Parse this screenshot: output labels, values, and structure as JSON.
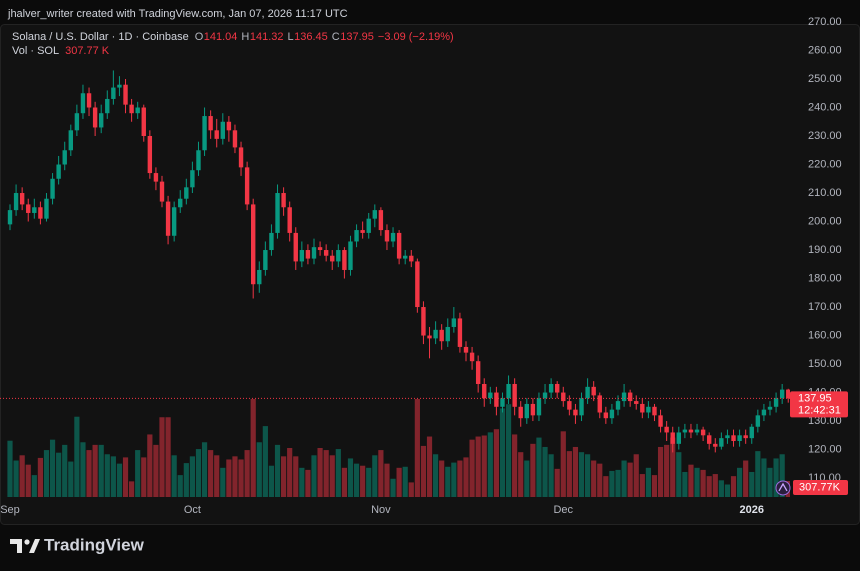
{
  "header": "jhalver_writer created with TradingView.com, Jan 07, 2026 11:17 UTC",
  "footer": "TradingView",
  "chart_data": {
    "type": "candlestick",
    "title": "Solana / U.S. Dollar · 1D · Coinbase",
    "ohlc_labels": [
      "O",
      "H",
      "L",
      "C"
    ],
    "change": {
      "value": -3.09,
      "label": "−3.09"
    },
    "change_pct": {
      "value": -2.19,
      "label": "(−2.19%)"
    },
    "up_color": "#089981",
    "down_color": "#f23645",
    "categories": [
      "Sep",
      null,
      null,
      null,
      null,
      null,
      null,
      null,
      null,
      null,
      null,
      null,
      null,
      null,
      null,
      null,
      null,
      null,
      null,
      null,
      null,
      null,
      null,
      null,
      null,
      null,
      null,
      null,
      null,
      null,
      "Oct",
      null,
      null,
      null,
      null,
      null,
      null,
      null,
      null,
      null,
      null,
      null,
      null,
      null,
      null,
      null,
      null,
      null,
      null,
      null,
      null,
      null,
      null,
      null,
      null,
      null,
      null,
      null,
      null,
      null,
      null,
      "Nov",
      null,
      null,
      null,
      null,
      null,
      null,
      null,
      null,
      null,
      null,
      null,
      null,
      null,
      null,
      null,
      null,
      null,
      null,
      null,
      null,
      null,
      null,
      null,
      null,
      null,
      null,
      null,
      null,
      null,
      "Dec",
      null,
      null,
      null,
      null,
      null,
      null,
      null,
      null,
      null,
      null,
      null,
      null,
      null,
      null,
      null,
      null,
      null,
      null,
      null,
      null,
      null,
      null,
      null,
      null,
      null,
      null,
      null,
      null,
      null,
      null,
      "2026",
      null,
      null,
      null,
      null,
      null,
      null
    ],
    "open": [
      199,
      204,
      210,
      206,
      203,
      205,
      201,
      208,
      215,
      220,
      225,
      232,
      238,
      245,
      240,
      233,
      238,
      243,
      247,
      248,
      241,
      238,
      240,
      230,
      217,
      214,
      207,
      195,
      205,
      208,
      212,
      218,
      225,
      237,
      232,
      229,
      235,
      232,
      226,
      219,
      206,
      178,
      183,
      190,
      196,
      210,
      205,
      196,
      186,
      190,
      187,
      191,
      190,
      188,
      186,
      190,
      183,
      193,
      197,
      196,
      201,
      204,
      197,
      193,
      196,
      187,
      188,
      186,
      170,
      160,
      159,
      162,
      158,
      163,
      166,
      156,
      154,
      151,
      143,
      138,
      140,
      135,
      138,
      143,
      135,
      131,
      136,
      132,
      138,
      140,
      143,
      140,
      137,
      134,
      132,
      138,
      142,
      139,
      133,
      131,
      134,
      137,
      140,
      137,
      136,
      133,
      135,
      132,
      128,
      126,
      122,
      126,
      127,
      126,
      127,
      125,
      122,
      121,
      124,
      125,
      123,
      125,
      124,
      128,
      132,
      134,
      135,
      138,
      141.04
    ],
    "high": [
      206,
      213,
      212,
      208,
      208,
      207,
      210,
      217,
      223,
      228,
      234,
      241,
      248,
      247,
      242,
      241,
      246,
      253,
      251,
      250,
      243,
      242,
      241,
      232,
      219,
      216,
      209,
      207,
      211,
      215,
      221,
      228,
      240,
      239,
      236,
      238,
      237,
      234,
      228,
      221,
      208,
      186,
      193,
      199,
      213,
      212,
      207,
      198,
      193,
      192,
      194,
      193,
      192,
      190,
      192,
      191,
      195,
      199,
      200,
      203,
      206,
      205,
      199,
      198,
      197,
      190,
      190,
      187,
      172,
      163,
      165,
      164,
      166,
      170,
      168,
      158,
      156,
      153,
      145,
      142,
      142,
      140,
      146,
      145,
      137,
      138,
      138,
      140,
      143,
      145,
      144,
      142,
      139,
      136,
      140,
      145,
      144,
      140,
      135,
      136,
      139,
      143,
      141,
      139,
      138,
      137,
      136,
      134,
      130,
      128,
      128,
      129,
      129,
      129,
      128,
      126,
      124,
      126,
      127,
      127,
      127,
      127,
      129,
      134,
      136,
      137,
      140,
      143,
      141.32
    ],
    "low": [
      197,
      202,
      204,
      200,
      201,
      199,
      200,
      206,
      213,
      218,
      223,
      230,
      236,
      237,
      230,
      231,
      236,
      241,
      244,
      238,
      235,
      236,
      228,
      215,
      211,
      205,
      192,
      193,
      203,
      206,
      210,
      216,
      223,
      229,
      226,
      227,
      228,
      224,
      216,
      204,
      173,
      175,
      181,
      188,
      194,
      202,
      193,
      183,
      184,
      185,
      185,
      188,
      186,
      183,
      184,
      180,
      181,
      191,
      194,
      194,
      198,
      195,
      190,
      191,
      185,
      185,
      184,
      168,
      157,
      152,
      157,
      155,
      156,
      161,
      154,
      151,
      148,
      140,
      135,
      136,
      132,
      133,
      136,
      132,
      128,
      129,
      130,
      130,
      136,
      138,
      138,
      135,
      132,
      129,
      130,
      136,
      137,
      131,
      129,
      129,
      132,
      135,
      135,
      134,
      131,
      131,
      130,
      126,
      123,
      119,
      120,
      124,
      124,
      125,
      123,
      120,
      119,
      120,
      122,
      121,
      121,
      122,
      122,
      126,
      130,
      132,
      133,
      136,
      136.45
    ],
    "close": [
      204,
      210,
      206,
      203,
      205,
      201,
      208,
      215,
      220,
      225,
      232,
      238,
      245,
      240,
      233,
      238,
      243,
      247,
      248,
      241,
      238,
      240,
      230,
      217,
      214,
      207,
      195,
      205,
      208,
      212,
      218,
      225,
      237,
      232,
      229,
      235,
      232,
      226,
      219,
      206,
      178,
      183,
      190,
      196,
      210,
      205,
      196,
      186,
      190,
      187,
      191,
      190,
      188,
      186,
      190,
      183,
      193,
      197,
      196,
      201,
      204,
      197,
      193,
      196,
      187,
      188,
      186,
      170,
      160,
      159,
      162,
      158,
      163,
      166,
      156,
      154,
      151,
      143,
      138,
      140,
      135,
      138,
      143,
      135,
      131,
      136,
      132,
      138,
      140,
      143,
      140,
      137,
      134,
      132,
      138,
      142,
      139,
      133,
      131,
      134,
      137,
      140,
      137,
      136,
      133,
      135,
      132,
      128,
      126,
      122,
      126,
      127,
      126,
      127,
      125,
      122,
      121,
      124,
      125,
      123,
      125,
      124,
      128,
      132,
      134,
      135,
      138,
      141.04,
      137.95
    ],
    "volume_title": "Vol · SOL",
    "volume": [
      1080,
      700,
      800,
      620,
      420,
      750,
      900,
      1100,
      850,
      1000,
      680,
      1540,
      1050,
      900,
      1000,
      1000,
      820,
      780,
      640,
      760,
      300,
      900,
      760,
      1200,
      1000,
      1530,
      1530,
      800,
      420,
      650,
      780,
      920,
      1050,
      900,
      800,
      560,
      720,
      780,
      720,
      900,
      1880,
      1050,
      1360,
      600,
      1000,
      780,
      940,
      780,
      560,
      520,
      800,
      940,
      900,
      800,
      920,
      560,
      740,
      640,
      600,
      560,
      800,
      900,
      640,
      350,
      560,
      580,
      280,
      1880,
      980,
      1160,
      820,
      700,
      580,
      660,
      700,
      760,
      1100,
      1160,
      1180,
      1240,
      1300,
      1700,
      1780,
      1200,
      860,
      700,
      1020,
      1140,
      960,
      820,
      540,
      1260,
      880,
      960,
      860,
      820,
      700,
      640,
      400,
      500,
      520,
      700,
      660,
      820,
      440,
      560,
      420,
      960,
      1000,
      1140,
      860,
      480,
      620,
      560,
      520,
      400,
      440,
      320,
      240,
      400,
      560,
      700,
      480,
      880,
      740,
      560,
      740,
      820,
      307.77
    ],
    "volume_value_label": "307.77 K",
    "volume_badge": "307.77K",
    "countdown": "12:42:31",
    "ylim": [
      102.3,
      270.7
    ],
    "yticks": [
      {
        "value": 110,
        "label": "110.00"
      },
      {
        "value": 120,
        "label": "120.00"
      },
      {
        "value": 130,
        "label": "130.00"
      },
      {
        "value": 140,
        "label": "140.00"
      },
      {
        "value": 150,
        "label": "150.00"
      },
      {
        "value": 160,
        "label": "160.00"
      },
      {
        "value": 170,
        "label": "170.00"
      },
      {
        "value": 180,
        "label": "180.00"
      },
      {
        "value": 190,
        "label": "190.00"
      },
      {
        "value": 200,
        "label": "200.00"
      },
      {
        "value": 210,
        "label": "210.00"
      },
      {
        "value": 220,
        "label": "220.00"
      },
      {
        "value": 230,
        "label": "230.00"
      },
      {
        "value": 240,
        "label": "240.00"
      },
      {
        "value": 250,
        "label": "250.00"
      },
      {
        "value": 260,
        "label": "260.00"
      },
      {
        "value": 270,
        "label": "270.00"
      }
    ],
    "grid": false
  }
}
